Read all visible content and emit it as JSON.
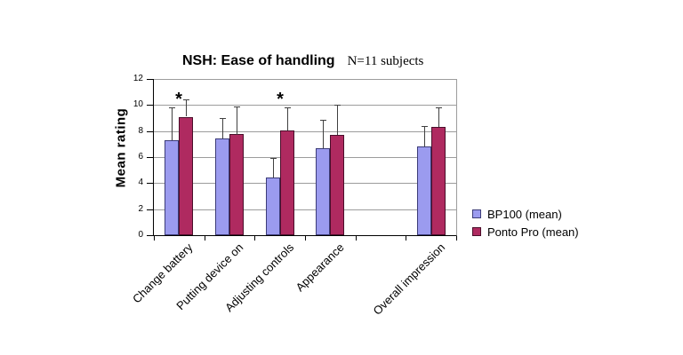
{
  "chart_data": {
    "type": "bar",
    "title": "NSH: Ease of handling",
    "subtitle": "N=11 subjects",
    "ylabel": "Mean rating",
    "ylim": [
      0,
      12
    ],
    "yticks": [
      0,
      2,
      4,
      6,
      8,
      10,
      12
    ],
    "grid": true,
    "legend_position": "right",
    "categories": [
      "Change battery",
      "Putting device on",
      "Adjusting controls",
      "Appearance",
      "Overall impression"
    ],
    "category_slots": [
      0,
      1,
      2,
      3,
      5
    ],
    "slot_count": 6,
    "series": [
      {
        "name": "BP100 (mean)",
        "color": "#9B9BEF",
        "border_color": "#3C3C78",
        "values": [
          7.3,
          7.45,
          4.4,
          6.7,
          6.85
        ],
        "error_up": [
          2.5,
          1.55,
          1.5,
          2.15,
          1.55
        ]
      },
      {
        "name": "Ponto Pro (mean)",
        "color": "#AF2A60",
        "border_color": "#4A0E2A",
        "values": [
          9.1,
          7.75,
          8.05,
          7.7,
          8.35
        ],
        "error_up": [
          1.3,
          2.15,
          1.75,
          2.3,
          1.5
        ]
      }
    ],
    "annotations": [
      {
        "symbol": "*",
        "category_index": 0
      },
      {
        "symbol": "*",
        "category_index": 2
      }
    ]
  },
  "colors": {
    "background": "#FFFFFF",
    "gridline": "#9C9C9C",
    "axis": "#000000",
    "error_bar": "#404040"
  }
}
